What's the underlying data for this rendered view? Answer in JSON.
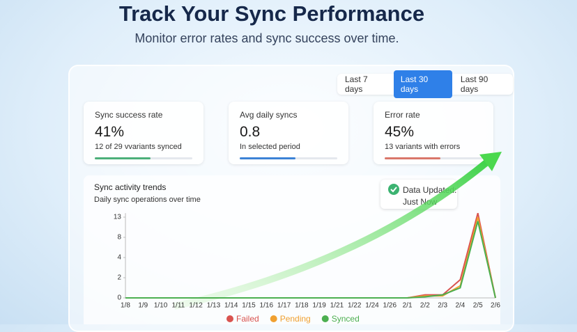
{
  "header": {
    "title": "Track Your Sync Performance",
    "subtitle": "Monitor error rates and sync success over time."
  },
  "tabs": [
    "Last 7 days",
    "Last 30 days",
    "Last 90 days"
  ],
  "active_tab": 1,
  "stats": [
    {
      "label": "Sync success rate",
      "value": "41%",
      "note": "12 of 29 vvariants synced",
      "color": "#4caf7a"
    },
    {
      "label": "Avg daily syncs",
      "value": "0.8",
      "note": "In selected period",
      "color": "#3b82d6"
    },
    {
      "label": "Error rate",
      "value": "45%",
      "note": "13 variants with errors",
      "color": "#d9776a"
    }
  ],
  "badge": {
    "title": "Data Updated:",
    "subtitle": "Just Now"
  },
  "chart_data": {
    "type": "line",
    "title": "Sync activity trends",
    "subtitle": "Daily sync operations over time",
    "categories": [
      "1/8",
      "1/9",
      "1/10",
      "1/11",
      "1/12",
      "1/13",
      "1/14",
      "1/15",
      "1/16",
      "1/17",
      "1/18",
      "1/19",
      "1/21",
      "1/22",
      "1/24",
      "1/26",
      "2/1",
      "2/2",
      "2/3",
      "2/4",
      "2/5",
      "2/6"
    ],
    "series": [
      {
        "name": "Failed",
        "color": "#d9534f",
        "values": [
          0,
          0,
          0,
          0,
          0,
          0,
          0,
          0,
          0,
          0,
          0,
          0,
          0,
          0,
          0,
          0,
          0,
          0.3,
          0.3,
          1.8,
          14,
          0
        ]
      },
      {
        "name": "Pending",
        "color": "#f0a030",
        "values": [
          0,
          0,
          0,
          0,
          0,
          0,
          0,
          0,
          0,
          0,
          0,
          0,
          0,
          0,
          0,
          0,
          0,
          0.2,
          0.2,
          1.2,
          13,
          0
        ]
      },
      {
        "name": "Synced",
        "color": "#4caf50",
        "values": [
          0,
          0,
          0,
          0,
          0,
          0,
          0,
          0,
          0,
          0,
          0,
          0,
          0,
          0,
          0,
          0,
          0,
          0.1,
          0.3,
          1,
          12,
          0
        ]
      }
    ],
    "ylim": [
      0,
      14
    ],
    "yticks": [
      0,
      2,
      4,
      8,
      13
    ]
  }
}
